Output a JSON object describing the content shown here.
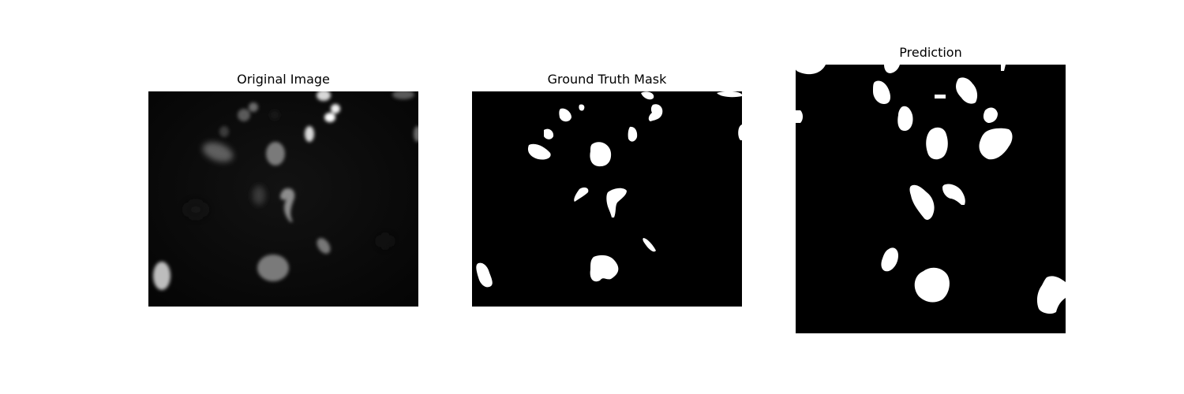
{
  "panels": [
    {
      "title": "Original Image",
      "content": "grayscale fluorescence microscopy of cell nuclei"
    },
    {
      "title": "Ground Truth Mask",
      "content": "binary segmentation mask"
    },
    {
      "title": "Prediction",
      "content": "binary predicted segmentation mask"
    }
  ],
  "colors": {
    "background": "#ffffff",
    "image_background": "#000000",
    "mask_foreground": "#ffffff"
  }
}
